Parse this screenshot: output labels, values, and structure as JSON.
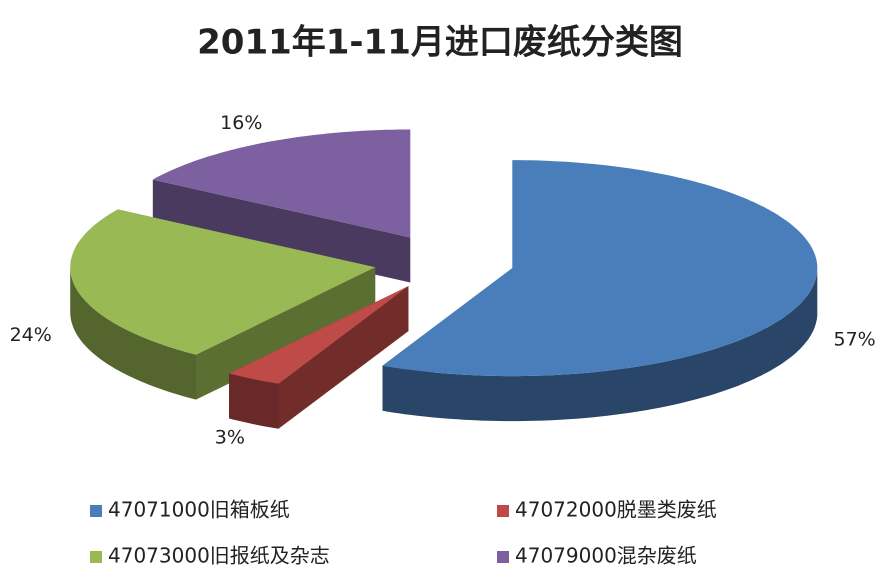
{
  "chart_data": {
    "type": "pie",
    "title": "2011年1-11月进口废纸分类图",
    "categories": [
      "47071000旧箱板纸",
      "47072000脱墨类废纸",
      "47073000旧报纸及杂志",
      "47079000混杂废纸"
    ],
    "values": [
      57,
      3,
      24,
      16
    ],
    "value_labels": [
      "57%",
      "3%",
      "24%",
      "16%"
    ],
    "colors": [
      "#4a7ebb",
      "#be4b48",
      "#98b954",
      "#7d60a0"
    ],
    "legend": "bottom"
  }
}
